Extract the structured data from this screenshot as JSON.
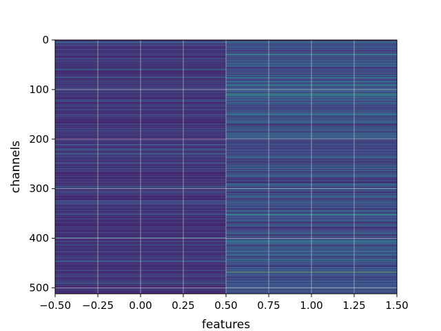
{
  "chart_data": {
    "type": "heatmap",
    "title": "",
    "xlabel": "features",
    "ylabel": "channels",
    "xlim": [
      -0.5,
      1.5
    ],
    "ylim": [
      512,
      0
    ],
    "rows": 512,
    "columns": 2,
    "grid": true,
    "colormap": "viridis",
    "x_ticks": [
      -0.5,
      -0.25,
      0.0,
      0.25,
      0.5,
      0.75,
      1.0,
      1.25,
      1.5
    ],
    "x_tick_labels": [
      "−0.50",
      "−0.25",
      "0.00",
      "0.25",
      "0.50",
      "0.75",
      "1.00",
      "1.25",
      "1.50"
    ],
    "y_ticks": [
      0,
      100,
      200,
      300,
      400,
      500
    ],
    "y_tick_labels": [
      "0",
      "100",
      "200",
      "300",
      "400",
      "500"
    ],
    "highlight_rows": [
      {
        "column": 0,
        "row": 5,
        "level": 0.45
      },
      {
        "column": 0,
        "row": 60,
        "level": 0.4
      },
      {
        "column": 0,
        "row": 75,
        "level": 0.35
      },
      {
        "column": 0,
        "row": 140,
        "level": 0.3
      },
      {
        "column": 0,
        "row": 222,
        "level": 0.45
      },
      {
        "column": 0,
        "row": 295,
        "level": 0.35
      },
      {
        "column": 0,
        "row": 398,
        "level": 0.4
      },
      {
        "column": 0,
        "row": 490,
        "level": 0.35
      },
      {
        "column": 1,
        "row": 28,
        "level": 0.55
      },
      {
        "column": 1,
        "row": 75,
        "level": 0.5
      },
      {
        "column": 1,
        "row": 108,
        "level": 0.6
      },
      {
        "column": 1,
        "row": 112,
        "level": 0.55
      },
      {
        "column": 1,
        "row": 150,
        "level": 0.45
      },
      {
        "column": 1,
        "row": 258,
        "level": 0.45
      },
      {
        "column": 1,
        "row": 290,
        "level": 0.5
      },
      {
        "column": 1,
        "row": 300,
        "level": 0.45
      },
      {
        "column": 1,
        "row": 352,
        "level": 0.55
      },
      {
        "column": 1,
        "row": 390,
        "level": 0.55
      },
      {
        "column": 1,
        "row": 418,
        "level": 0.5
      },
      {
        "column": 1,
        "row": 468,
        "level": 0.75
      },
      {
        "column": 1,
        "row": 500,
        "level": 0.55
      }
    ]
  }
}
